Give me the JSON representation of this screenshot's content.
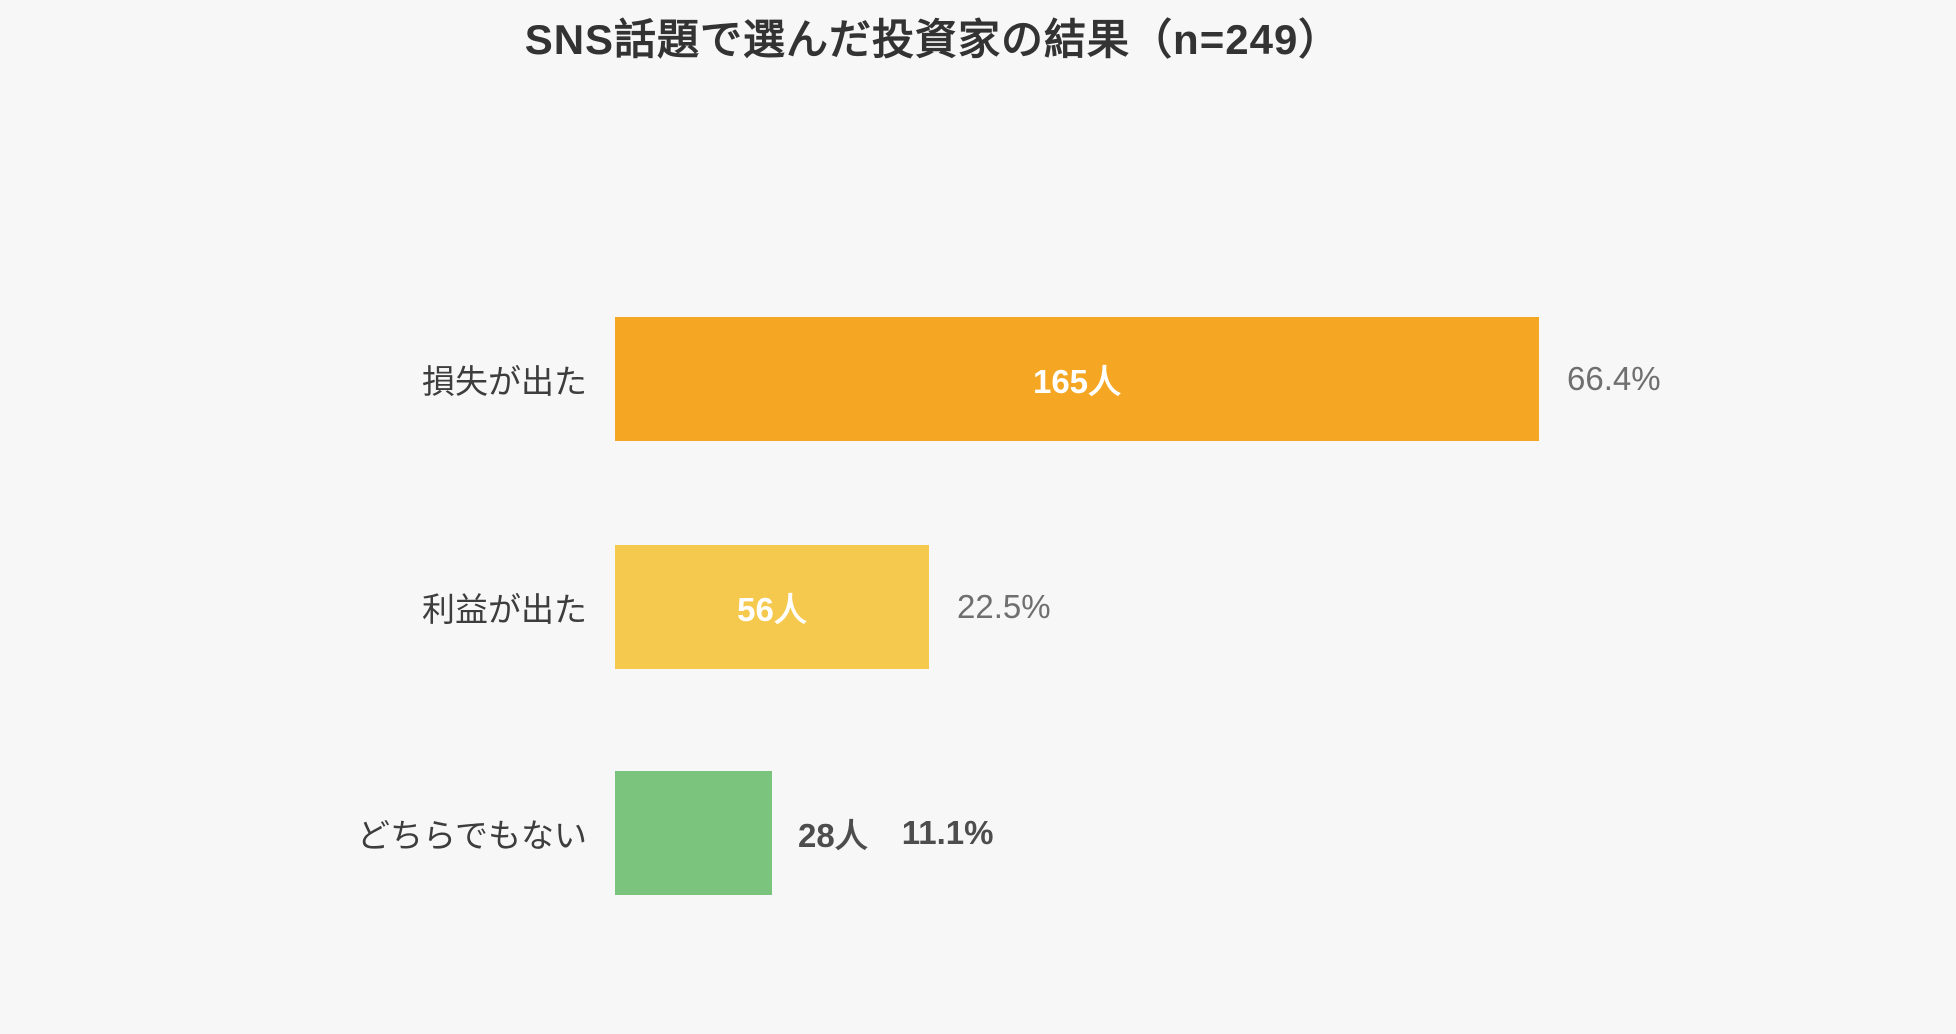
{
  "chart_data": {
    "type": "bar",
    "orientation": "horizontal",
    "title": "SNS話題で選んだ投資家の結果（n=249）",
    "sample_size": 249,
    "categories": [
      "損失が出た",
      "利益が出た",
      "どちらでもない"
    ],
    "values": [
      165,
      56,
      28
    ],
    "percentages": [
      66.4,
      22.5,
      11.1
    ],
    "value_unit": "人",
    "xlim": [
      0,
      165
    ],
    "grid": false,
    "legend": false,
    "rows": [
      {
        "label": "損失が出た",
        "count": 165,
        "count_label": "165人",
        "pct_label": "66.4%",
        "color": "#F5A623",
        "value_inside": true
      },
      {
        "label": "利益が出た",
        "count": 56,
        "count_label": "56人",
        "pct_label": "22.5%",
        "color": "#F5C94D",
        "value_inside": true
      },
      {
        "label": "どちらでもない",
        "count": 28,
        "count_label": "28人",
        "pct_label": "11.1%",
        "color": "#7AC47E",
        "value_inside": false
      }
    ],
    "colors": {
      "background": "#F7F7F7",
      "title_text": "#333333",
      "label_text": "#3D3D3D",
      "pct_text": "#6F6F6F",
      "outside_value_text": "#4D4D4D",
      "bar_value_text": "#FFFFFF"
    }
  }
}
